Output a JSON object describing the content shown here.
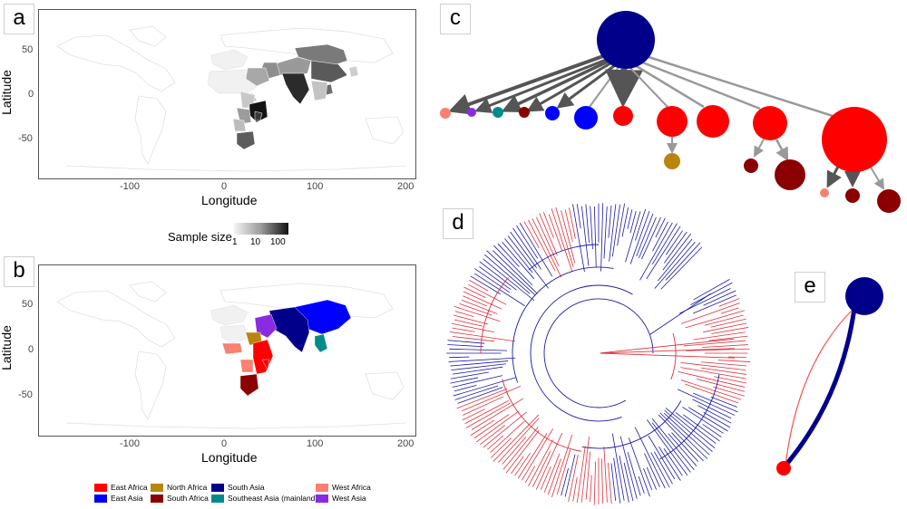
{
  "panels": {
    "a": {
      "label": "a"
    },
    "b": {
      "label": "b"
    },
    "c": {
      "label": "c"
    },
    "d": {
      "label": "d"
    },
    "e": {
      "label": "e"
    }
  },
  "maps": {
    "xlabel": "Longitude",
    "ylabel": "Latitude",
    "x_ticks": [
      "-100",
      "0",
      "100",
      "200"
    ],
    "y_ticks": [
      "50",
      "0",
      "-50"
    ]
  },
  "sample_size_legend": {
    "title": "Sample size",
    "ticks": [
      "1",
      "10",
      "100"
    ]
  },
  "region_legend": [
    {
      "name": "East Africa",
      "color": "#ff0000"
    },
    {
      "name": "East Asia",
      "color": "#0000ff"
    },
    {
      "name": "North Africa",
      "color": "#b8860b"
    },
    {
      "name": "South Africa",
      "color": "#8b0000"
    },
    {
      "name": "South Asia",
      "color": "#00008b"
    },
    {
      "name": "Southeast Asia (mainland)",
      "color": "#008b8b"
    },
    {
      "name": "West Africa",
      "color": "#fa8072"
    },
    {
      "name": "West Asia",
      "color": "#8a2be2"
    }
  ],
  "tree_colors": {
    "blue": "#1a1aa6",
    "red": "#e0303c"
  },
  "network_colors": {
    "hub": "#00008b",
    "edge_dark": "#555555",
    "edge_light": "#999999"
  }
}
